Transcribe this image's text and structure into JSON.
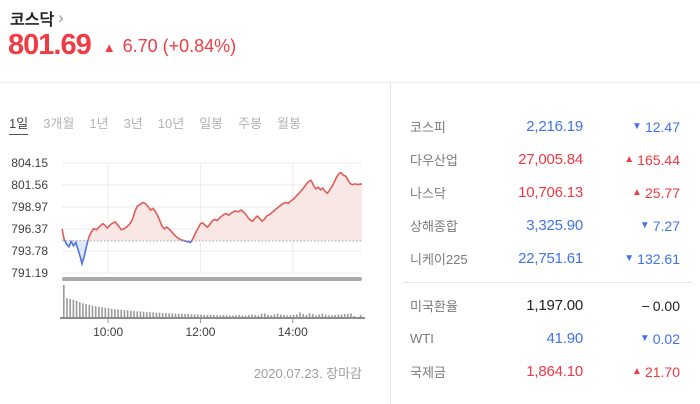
{
  "header": {
    "title": "코스닥",
    "chevron": "›",
    "price": "801.69",
    "change_arrow": "▲",
    "change_text": "6.70 (+0.84%)"
  },
  "tabs": [
    {
      "id": "1d",
      "label": "1일",
      "active": true
    },
    {
      "id": "3m",
      "label": "3개월",
      "active": false
    },
    {
      "id": "1y",
      "label": "1년",
      "active": false
    },
    {
      "id": "3y",
      "label": "3년",
      "active": false
    },
    {
      "id": "10y",
      "label": "10년",
      "active": false
    },
    {
      "id": "daily",
      "label": "일봉",
      "active": false
    },
    {
      "id": "weekly",
      "label": "주봉",
      "active": false
    },
    {
      "id": "monthly",
      "label": "월봉",
      "active": false
    }
  ],
  "chart_data": {
    "type": "area",
    "title": "코스닥 1일 지수 추이",
    "close_label": "2020.07.23. 장마감",
    "y_axis": {
      "tick_labels": [
        "804.15",
        "801.56",
        "798.97",
        "796.37",
        "793.78",
        "791.19"
      ]
    },
    "x_axis": {
      "range_minutes": [
        0,
        390
      ],
      "ticks": [
        {
          "t": 60,
          "label": "10:00"
        },
        {
          "t": 180,
          "label": "12:00"
        },
        {
          "t": 300,
          "label": "14:00"
        }
      ]
    },
    "baseline_prev_close": 794.99,
    "last_price": 801.69,
    "series": [
      [
        0,
        796.4
      ],
      [
        3,
        795.1
      ],
      [
        6,
        794.6
      ],
      [
        9,
        794.3
      ],
      [
        12,
        794.9
      ],
      [
        15,
        794.4
      ],
      [
        18,
        794.8
      ],
      [
        21,
        793.9
      ],
      [
        24,
        793.0
      ],
      [
        26,
        792.3
      ],
      [
        29,
        793.2
      ],
      [
        32,
        794.4
      ],
      [
        35,
        795.4
      ],
      [
        38,
        796.0
      ],
      [
        41,
        796.4
      ],
      [
        45,
        796.3
      ],
      [
        49,
        796.7
      ],
      [
        53,
        797.0
      ],
      [
        56,
        796.8
      ],
      [
        59,
        796.5
      ],
      [
        63,
        796.9
      ],
      [
        66,
        797.1
      ],
      [
        69,
        797.2
      ],
      [
        73,
        796.8
      ],
      [
        77,
        796.3
      ],
      [
        81,
        796.4
      ],
      [
        85,
        796.7
      ],
      [
        89,
        797.1
      ],
      [
        92,
        797.6
      ],
      [
        95,
        798.5
      ],
      [
        98,
        799.1
      ],
      [
        102,
        799.3
      ],
      [
        105,
        799.5
      ],
      [
        108,
        799.4
      ],
      [
        112,
        799.0
      ],
      [
        115,
        798.6
      ],
      [
        118,
        798.8
      ],
      [
        121,
        798.5
      ],
      [
        124,
        798.0
      ],
      [
        127,
        797.4
      ],
      [
        130,
        796.7
      ],
      [
        133,
        796.4
      ],
      [
        136,
        796.6
      ],
      [
        139,
        796.4
      ],
      [
        143,
        796.0
      ],
      [
        147,
        795.6
      ],
      [
        151,
        795.3
      ],
      [
        155,
        795.1
      ],
      [
        159,
        795.0
      ],
      [
        163,
        794.9
      ],
      [
        167,
        794.8
      ],
      [
        170,
        795.2
      ],
      [
        173,
        795.8
      ],
      [
        177,
        796.5
      ],
      [
        180,
        797.0
      ],
      [
        183,
        797.1
      ],
      [
        186,
        796.8
      ],
      [
        189,
        796.6
      ],
      [
        192,
        796.9
      ],
      [
        195,
        797.3
      ],
      [
        198,
        797.5
      ],
      [
        202,
        797.4
      ],
      [
        205,
        797.7
      ],
      [
        209,
        798.0
      ],
      [
        213,
        798.2
      ],
      [
        217,
        798.0
      ],
      [
        221,
        798.3
      ],
      [
        225,
        798.5
      ],
      [
        229,
        798.4
      ],
      [
        233,
        798.6
      ],
      [
        236,
        798.4
      ],
      [
        239,
        798.1
      ],
      [
        242,
        797.7
      ],
      [
        245,
        797.4
      ],
      [
        248,
        797.3
      ],
      [
        251,
        797.7
      ],
      [
        254,
        797.9
      ],
      [
        257,
        797.6
      ],
      [
        260,
        797.3
      ],
      [
        263,
        797.5
      ],
      [
        266,
        797.9
      ],
      [
        270,
        798.1
      ],
      [
        274,
        798.4
      ],
      [
        278,
        798.7
      ],
      [
        282,
        799.0
      ],
      [
        286,
        799.3
      ],
      [
        290,
        799.5
      ],
      [
        294,
        799.4
      ],
      [
        298,
        799.7
      ],
      [
        302,
        800.0
      ],
      [
        306,
        800.4
      ],
      [
        310,
        800.8
      ],
      [
        314,
        801.2
      ],
      [
        318,
        801.7
      ],
      [
        321,
        802.0
      ],
      [
        324,
        802.1
      ],
      [
        327,
        801.5
      ],
      [
        330,
        801.1
      ],
      [
        333,
        801.3
      ],
      [
        336,
        801.0
      ],
      [
        339,
        801.2
      ],
      [
        342,
        800.8
      ],
      [
        345,
        800.6
      ],
      [
        348,
        801.0
      ],
      [
        351,
        801.4
      ],
      [
        354,
        801.9
      ],
      [
        357,
        802.5
      ],
      [
        360,
        802.9
      ],
      [
        363,
        803.0
      ],
      [
        366,
        802.7
      ],
      [
        369,
        802.6
      ],
      [
        372,
        802.1
      ],
      [
        375,
        801.7
      ],
      [
        378,
        801.6
      ],
      [
        381,
        801.7
      ],
      [
        384,
        801.6
      ],
      [
        387,
        801.65
      ],
      [
        390,
        801.69
      ]
    ],
    "volume": [
      100,
      60,
      58,
      55,
      52,
      48,
      45,
      42,
      40,
      38,
      36,
      34,
      33,
      31,
      30,
      28,
      27,
      26,
      25,
      24,
      23,
      22,
      21,
      20,
      20,
      19,
      18,
      18,
      17,
      16,
      16,
      15,
      15,
      14,
      14,
      13,
      13,
      12,
      12,
      12,
      11,
      11,
      10,
      10,
      10,
      9,
      9,
      9,
      8,
      8,
      9,
      8,
      7,
      7,
      8,
      9,
      8,
      7,
      9,
      11,
      9,
      8,
      13,
      14,
      10,
      8,
      11,
      13,
      10,
      9,
      8,
      8,
      9,
      11,
      17,
      12,
      10,
      15,
      12,
      8,
      11,
      13,
      10,
      8,
      8,
      9,
      10,
      11,
      12,
      12,
      14,
      6,
      2,
      9
    ]
  },
  "sidebar": {
    "groups": [
      {
        "rows": [
          {
            "id": "kospi",
            "label": "코스피",
            "value": "2,216.19",
            "change": "12.47",
            "direction": "down"
          },
          {
            "id": "dow",
            "label": "다우산업",
            "value": "27,005.84",
            "change": "165.44",
            "direction": "up"
          },
          {
            "id": "nasdaq",
            "label": "나스닥",
            "value": "10,706.13",
            "change": "25.77",
            "direction": "up"
          },
          {
            "id": "shanghai",
            "label": "상해종합",
            "value": "3,325.90",
            "change": "7.27",
            "direction": "down"
          },
          {
            "id": "nikkei225",
            "label": "니케이225",
            "value": "22,751.61",
            "change": "132.61",
            "direction": "down"
          }
        ]
      },
      {
        "rows": [
          {
            "id": "usdkrw",
            "label": "미국환율",
            "value": "1,197.00",
            "change": "0.00",
            "direction": "flat"
          },
          {
            "id": "wti",
            "label": "WTI",
            "value": "41.90",
            "change": "0.02",
            "direction": "down"
          },
          {
            "id": "gold",
            "label": "국제금",
            "value": "1,864.10",
            "change": "21.70",
            "direction": "up"
          }
        ]
      }
    ]
  },
  "glyphs": {
    "up": "▲",
    "down": "▼",
    "flat": "−"
  },
  "colors": {
    "up": "#ef3a42",
    "down": "#4073e8",
    "flat": "#222222",
    "chart_line_up": "#e05c57",
    "chart_fill_up": "#f9e7e6",
    "chart_line_down": "#4f74dc",
    "chart_fill_down": "#dce8f8",
    "grid": "#ebebeb",
    "axis_text": "#404040",
    "volume_bar": "#9a9a9a",
    "volume_axis": "#8c8c8c"
  }
}
